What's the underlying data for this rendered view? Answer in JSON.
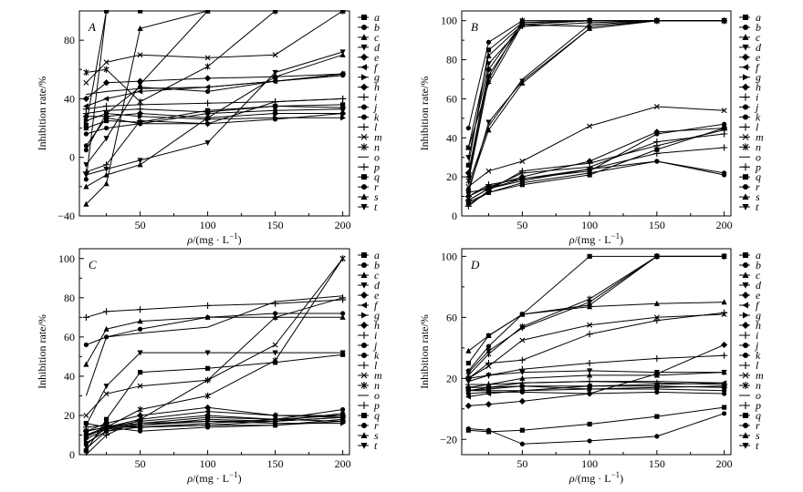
{
  "figure": {
    "x_axis_label_parts": [
      "ρ",
      "/(mg · L",
      "−1",
      ")"
    ],
    "y_axis_label": "Inhibition rate/%",
    "x_tick_labels": [
      "50",
      "100",
      "150",
      "200"
    ],
    "legend_labels": [
      "a",
      "b",
      "c",
      "d",
      "e",
      "f",
      "g",
      "h",
      "i",
      "j",
      "k",
      "l",
      "m",
      "n",
      "o",
      "p",
      "q",
      "r",
      "s",
      "t"
    ]
  },
  "chart_data": [
    {
      "type": "line",
      "panel": "A",
      "title": "A",
      "xlabel": "ρ/(mg·L−1)",
      "ylabel": "Inhibition rate/%",
      "x": [
        10,
        25,
        50,
        100,
        150,
        200
      ],
      "xlim": [
        5,
        205
      ],
      "ylim": [
        -40,
        100
      ],
      "yticks": [
        -40,
        0,
        40,
        80
      ],
      "y_tick_labels": [
        "−40",
        "0",
        "40",
        "80"
      ],
      "series": [
        {
          "name": "a",
          "values": [
            22,
            100,
            100,
            100,
            100,
            100
          ]
        },
        {
          "name": "b",
          "values": [
            -15,
            100,
            100,
            100,
            100,
            100
          ]
        },
        {
          "name": "c",
          "values": [
            -32,
            -18,
            88,
            100,
            100,
            100
          ]
        },
        {
          "name": "d",
          "values": [
            -5,
            13,
            50,
            100,
            100,
            100
          ]
        },
        {
          "name": "e",
          "values": [
            40,
            51,
            52,
            54,
            55,
            57
          ]
        },
        {
          "name": "f",
          "values": [
            35,
            40,
            45,
            48,
            52,
            57
          ]
        },
        {
          "name": "g",
          "values": [
            25,
            30,
            28,
            26,
            27,
            27
          ]
        },
        {
          "name": "h",
          "values": [
            28,
            28,
            30,
            27,
            30,
            30
          ]
        },
        {
          "name": "i",
          "values": [
            33,
            35,
            36,
            37,
            38,
            40
          ]
        },
        {
          "name": "j",
          "values": [
            5,
            30,
            48,
            45,
            52,
            56
          ]
        },
        {
          "name": "k",
          "values": [
            8,
            27,
            23,
            23,
            26,
            30
          ]
        },
        {
          "name": "l",
          "values": [
            30,
            32,
            33,
            31,
            35,
            34
          ]
        },
        {
          "name": "m",
          "values": [
            51,
            65,
            70,
            68,
            70,
            100
          ]
        },
        {
          "name": "n",
          "values": [
            58,
            60,
            38,
            62,
            100,
            100
          ]
        },
        {
          "name": "o",
          "values": [
            43,
            45,
            47,
            48,
            52,
            56
          ]
        },
        {
          "name": "p",
          "values": [
            -10,
            -5,
            25,
            23,
            38,
            40
          ]
        },
        {
          "name": "q",
          "values": [
            20,
            25,
            24,
            32,
            35,
            36
          ]
        },
        {
          "name": "r",
          "values": [
            16,
            20,
            23,
            30,
            32,
            33
          ]
        },
        {
          "name": "s",
          "values": [
            -20,
            -12,
            -5,
            27,
            55,
            70
          ]
        },
        {
          "name": "t",
          "values": [
            -12,
            -8,
            -2,
            10,
            58,
            72
          ]
        }
      ]
    },
    {
      "type": "line",
      "panel": "B",
      "title": "B",
      "xlabel": "ρ/(mg·L−1)",
      "ylabel": "Inhibition rate/%",
      "x": [
        10,
        25,
        50,
        100,
        150,
        200
      ],
      "xlim": [
        5,
        205
      ],
      "ylim": [
        0,
        105
      ],
      "yticks": [
        0,
        20,
        40,
        60,
        80,
        100
      ],
      "y_tick_labels": [
        "0",
        "20",
        "40",
        "60",
        "80",
        "100"
      ],
      "series": [
        {
          "name": "a",
          "values": [
            26,
            85,
            99,
            100,
            100,
            100
          ]
        },
        {
          "name": "b",
          "values": [
            45,
            89,
            100,
            100,
            100,
            100
          ]
        },
        {
          "name": "c",
          "values": [
            35,
            82,
            98,
            100,
            100,
            100
          ]
        },
        {
          "name": "d",
          "values": [
            30,
            78,
            97,
            99,
            100,
            100
          ]
        },
        {
          "name": "e",
          "values": [
            22,
            75,
            99,
            100,
            100,
            100
          ]
        },
        {
          "name": "f",
          "values": [
            20,
            72,
            98,
            100,
            100,
            100
          ]
        },
        {
          "name": "g",
          "values": [
            35,
            68,
            98,
            97,
            100,
            100
          ]
        },
        {
          "name": "h",
          "values": [
            10,
            15,
            20,
            28,
            43,
            45
          ]
        },
        {
          "name": "i",
          "values": [
            8,
            14,
            22,
            25,
            38,
            42
          ]
        },
        {
          "name": "j",
          "values": [
            12,
            14,
            18,
            24,
            28,
            22
          ]
        },
        {
          "name": "k",
          "values": [
            6,
            12,
            17,
            22,
            28,
            21
          ]
        },
        {
          "name": "l",
          "values": [
            10,
            16,
            19,
            24,
            32,
            35
          ]
        },
        {
          "name": "m",
          "values": [
            15,
            23,
            28,
            46,
            56,
            54
          ]
        },
        {
          "name": "n",
          "values": [
            18,
            70,
            100,
            100,
            100,
            100
          ]
        },
        {
          "name": "o",
          "values": [
            16,
            46,
            70,
            98,
            100,
            100
          ]
        },
        {
          "name": "p",
          "values": [
            5,
            13,
            23,
            27,
            36,
            44
          ]
        },
        {
          "name": "q",
          "values": [
            7,
            12,
            16,
            21,
            34,
            45
          ]
        },
        {
          "name": "r",
          "values": [
            8,
            14,
            19,
            23,
            42,
            47
          ]
        },
        {
          "name": "s",
          "values": [
            14,
            44,
            68,
            96,
            100,
            100
          ]
        },
        {
          "name": "t",
          "values": [
            12,
            48,
            69,
            96,
            100,
            100
          ]
        }
      ]
    },
    {
      "type": "line",
      "panel": "C",
      "title": "C",
      "xlabel": "ρ/(mg·L−1)",
      "ylabel": "Inhibition rate/%",
      "x": [
        10,
        25,
        50,
        100,
        150,
        200
      ],
      "xlim": [
        5,
        205
      ],
      "ylim": [
        0,
        105
      ],
      "yticks": [
        0,
        20,
        40,
        60,
        80,
        100
      ],
      "y_tick_labels": [
        "0",
        "20",
        "40",
        "60",
        "80",
        "100"
      ],
      "series": [
        {
          "name": "a",
          "values": [
            2,
            18,
            42,
            44,
            47,
            51
          ]
        },
        {
          "name": "b",
          "values": [
            56,
            60,
            64,
            70,
            72,
            72
          ]
        },
        {
          "name": "c",
          "values": [
            46,
            64,
            68,
            70,
            70,
            70
          ]
        },
        {
          "name": "d",
          "values": [
            15,
            35,
            52,
            52,
            52,
            52
          ]
        },
        {
          "name": "e",
          "values": [
            12,
            14,
            17,
            20,
            18,
            17
          ]
        },
        {
          "name": "f",
          "values": [
            10,
            14,
            18,
            22,
            20,
            19
          ]
        },
        {
          "name": "g",
          "values": [
            8,
            13,
            15,
            17,
            16,
            16
          ]
        },
        {
          "name": "h",
          "values": [
            12,
            16,
            20,
            24,
            20,
            20
          ]
        },
        {
          "name": "i",
          "values": [
            14,
            15,
            14,
            15,
            17,
            19
          ]
        },
        {
          "name": "j",
          "values": [
            6,
            12,
            16,
            19,
            18,
            23
          ]
        },
        {
          "name": "k",
          "values": [
            10,
            13,
            15,
            18,
            17,
            21
          ]
        },
        {
          "name": "l",
          "values": [
            0,
            10,
            18,
            38,
            70,
            80
          ]
        },
        {
          "name": "m",
          "values": [
            20,
            31,
            35,
            38,
            56,
            100
          ]
        },
        {
          "name": "n",
          "values": [
            12,
            14,
            23,
            30,
            48,
            100
          ]
        },
        {
          "name": "o",
          "values": [
            30,
            60,
            62,
            65,
            78,
            81
          ]
        },
        {
          "name": "p",
          "values": [
            70,
            73,
            74,
            76,
            77,
            79
          ]
        },
        {
          "name": "q",
          "values": [
            16,
            14,
            14,
            15,
            15,
            17
          ]
        },
        {
          "name": "r",
          "values": [
            5,
            14,
            12,
            14,
            15,
            18
          ]
        },
        {
          "name": "s",
          "values": [
            3,
            12,
            14,
            16,
            18,
            20
          ]
        },
        {
          "name": "t",
          "values": [
            9,
            14,
            16,
            17,
            17,
            19
          ]
        }
      ]
    },
    {
      "type": "line",
      "panel": "D",
      "title": "D",
      "xlabel": "ρ/(mg·L−1)",
      "ylabel": "Inhibition rate/%",
      "x": [
        10,
        25,
        50,
        100,
        150,
        200
      ],
      "xlim": [
        5,
        205
      ],
      "ylim": [
        -30,
        105
      ],
      "yticks": [
        -20,
        20,
        60,
        100
      ],
      "y_tick_labels": [
        "−20",
        "20",
        "60",
        "100"
      ],
      "series": [
        {
          "name": "a",
          "values": [
            30,
            48,
            62,
            100,
            100,
            100
          ]
        },
        {
          "name": "b",
          "values": [
            25,
            41,
            62,
            68,
            100,
            100
          ]
        },
        {
          "name": "c",
          "values": [
            38,
            48,
            62,
            67,
            69,
            70
          ]
        },
        {
          "name": "d",
          "values": [
            24,
            38,
            53,
            70,
            100,
            100
          ]
        },
        {
          "name": "e",
          "values": [
            2,
            3,
            5,
            10,
            23,
            42
          ]
        },
        {
          "name": "f",
          "values": [
            8,
            10,
            12,
            15,
            16,
            17
          ]
        },
        {
          "name": "g",
          "values": [
            12,
            13,
            15,
            13,
            14,
            15
          ]
        },
        {
          "name": "h",
          "values": [
            14,
            14,
            15,
            15,
            15,
            14
          ]
        },
        {
          "name": "i",
          "values": [
            16,
            16,
            17,
            18,
            17,
            16
          ]
        },
        {
          "name": "j",
          "values": [
            12,
            12,
            12,
            13,
            13,
            12
          ]
        },
        {
          "name": "k",
          "values": [
            10,
            11,
            11,
            10,
            11,
            10
          ]
        },
        {
          "name": "l",
          "values": [
            20,
            22,
            26,
            30,
            33,
            35
          ]
        },
        {
          "name": "m",
          "values": [
            20,
            28,
            45,
            55,
            60,
            62
          ]
        },
        {
          "name": "n",
          "values": [
            22,
            36,
            54,
            72,
            100,
            100
          ]
        },
        {
          "name": "o",
          "values": [
            12,
            14,
            17,
            18,
            18,
            17
          ]
        },
        {
          "name": "p",
          "values": [
            20,
            30,
            32,
            49,
            58,
            63
          ]
        },
        {
          "name": "q",
          "values": [
            -14,
            -15,
            -14,
            -10,
            -5,
            1
          ]
        },
        {
          "name": "r",
          "values": [
            -13,
            -14,
            -23,
            -21,
            -18,
            -3
          ]
        },
        {
          "name": "s",
          "values": [
            14,
            16,
            20,
            22,
            22,
            24
          ]
        },
        {
          "name": "t",
          "values": [
            18,
            22,
            24,
            25,
            24,
            24
          ]
        }
      ]
    }
  ]
}
